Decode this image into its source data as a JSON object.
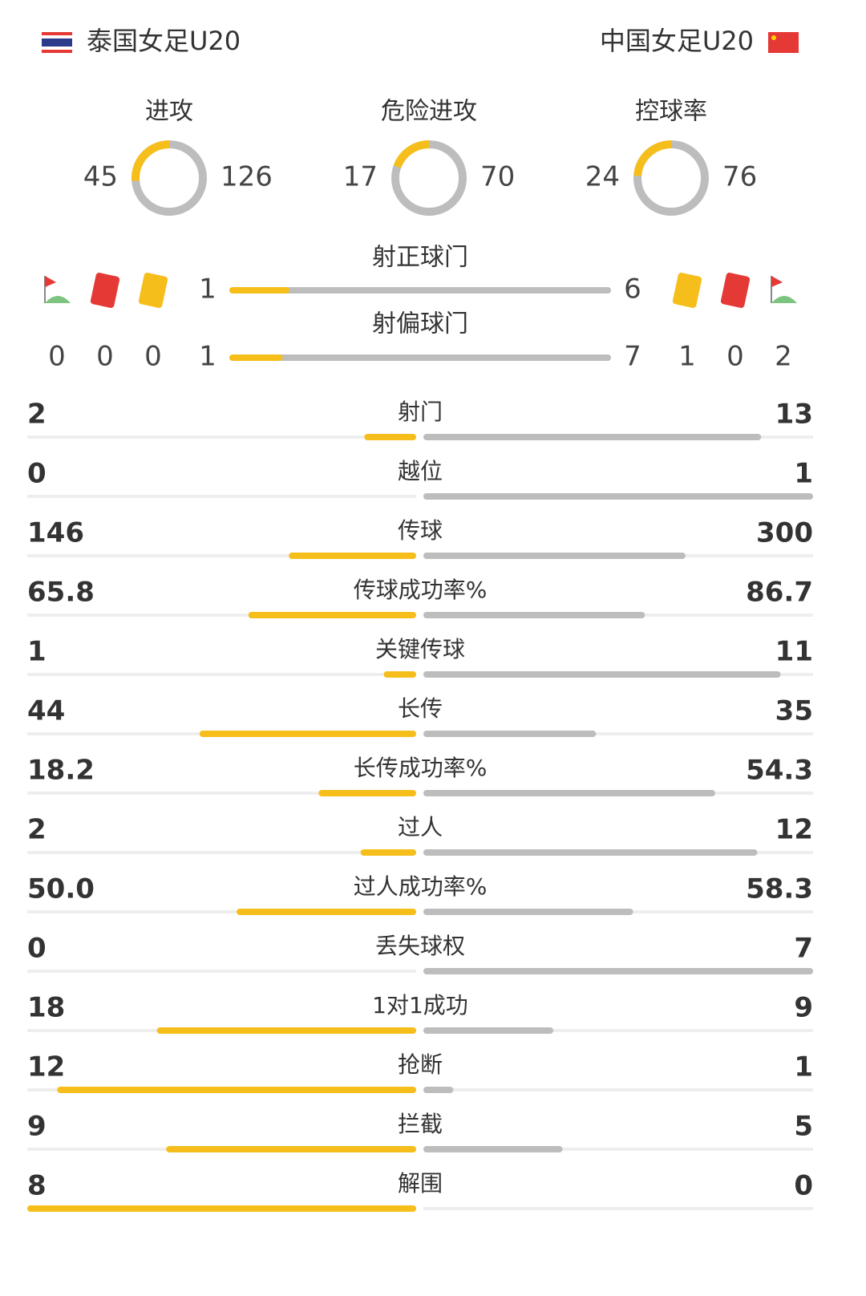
{
  "teams": {
    "home": "泰国女足U20",
    "away": "中国女足U20"
  },
  "rings": [
    {
      "label": "进攻",
      "home": 45,
      "away": 126
    },
    {
      "label": "危险进攻",
      "home": 17,
      "away": 70
    },
    {
      "label": "控球率",
      "home": 24,
      "away": 76
    }
  ],
  "shots": [
    {
      "label": "射正球门",
      "home": 1,
      "away": 6
    },
    {
      "label": "射偏球门",
      "home": 1,
      "away": 7
    }
  ],
  "cards": {
    "home": {
      "corners": 0,
      "red": 0,
      "yellow": 0
    },
    "away": {
      "yellow": 1,
      "red": 0,
      "corners": 2
    }
  },
  "stats": [
    {
      "label": "射门",
      "home": 2,
      "away": 13
    },
    {
      "label": "越位",
      "home": 0,
      "away": 1
    },
    {
      "label": "传球",
      "home": 146,
      "away": 300
    },
    {
      "label": "传球成功率%",
      "home": 65.8,
      "away": 86.7
    },
    {
      "label": "关键传球",
      "home": 1,
      "away": 11
    },
    {
      "label": "长传",
      "home": 44,
      "away": 35
    },
    {
      "label": "长传成功率%",
      "home": 18.2,
      "away": 54.3
    },
    {
      "label": "过人",
      "home": 2,
      "away": 12
    },
    {
      "label": "过人成功率%",
      "home": 50,
      "home_label": "50.0",
      "away": 58.3
    },
    {
      "label": "丢失球权",
      "home": 0,
      "away": 7
    },
    {
      "label": "1对1成功",
      "home": 18,
      "away": 9
    },
    {
      "label": "抢断",
      "home": 12,
      "away": 1
    },
    {
      "label": "拦截",
      "home": 9,
      "away": 5
    },
    {
      "label": "解围",
      "home": 8,
      "away": 0
    }
  ]
}
